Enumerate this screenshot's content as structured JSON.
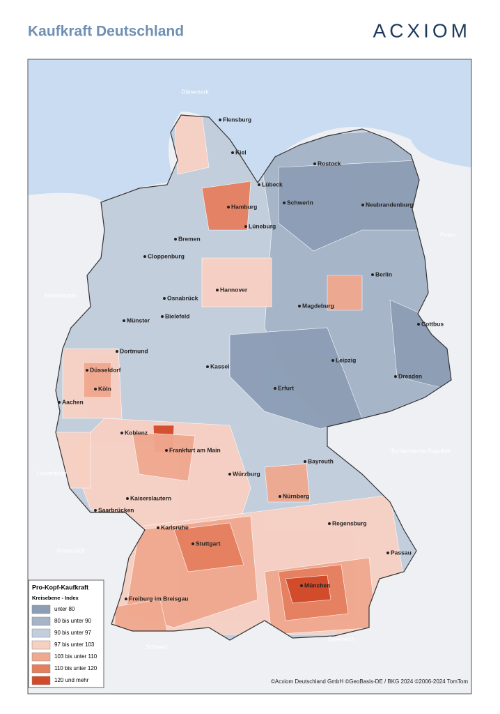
{
  "header": {
    "title": "Kaufkraft Deutschland",
    "logo": "ACXIOM"
  },
  "map": {
    "countries": [
      {
        "label": "Dänemark"
      },
      {
        "label": "Polen"
      },
      {
        "label": "Niederlande"
      },
      {
        "label": "Tschechische Republik"
      },
      {
        "label": "Luxemburg"
      },
      {
        "label": "Frankreich"
      },
      {
        "label": "Schweiz"
      },
      {
        "label": "Österreich"
      }
    ],
    "cities": [
      {
        "label": "Flensburg"
      },
      {
        "label": "Kiel"
      },
      {
        "label": "Rostock"
      },
      {
        "label": "Lübeck"
      },
      {
        "label": "Hamburg"
      },
      {
        "label": "Schwerin"
      },
      {
        "label": "Neubrandenburg"
      },
      {
        "label": "Lüneburg"
      },
      {
        "label": "Bremen"
      },
      {
        "label": "Cloppenburg"
      },
      {
        "label": "Berlin"
      },
      {
        "label": "Hannover"
      },
      {
        "label": "Osnabrück"
      },
      {
        "label": "Magdeburg"
      },
      {
        "label": "Münster"
      },
      {
        "label": "Bielefeld"
      },
      {
        "label": "Cottbus"
      },
      {
        "label": "Dortmund"
      },
      {
        "label": "Leipzig"
      },
      {
        "label": "Kassel"
      },
      {
        "label": "Düsseldorf"
      },
      {
        "label": "Dresden"
      },
      {
        "label": "Köln"
      },
      {
        "label": "Erfurt"
      },
      {
        "label": "Aachen"
      },
      {
        "label": "Koblenz"
      },
      {
        "label": "Frankfurt am Main"
      },
      {
        "label": "Bayreuth"
      },
      {
        "label": "Würzburg"
      },
      {
        "label": "Nürnberg"
      },
      {
        "label": "Kaiserslautern"
      },
      {
        "label": "Saarbrücken"
      },
      {
        "label": "Regensburg"
      },
      {
        "label": "Karlsruhe"
      },
      {
        "label": "Stuttgart"
      },
      {
        "label": "Passau"
      },
      {
        "label": "München"
      },
      {
        "label": "Freiburg im Breisgau"
      }
    ]
  },
  "legend": {
    "title": "Pro-Kopf-Kaufkraft",
    "subtitle": "Kreisebene - Index",
    "items": [
      {
        "label": "unter 80",
        "color": "#8c9db5"
      },
      {
        "label": "80 bis unter 90",
        "color": "#a6b4c8"
      },
      {
        "label": "90 bis unter 97",
        "color": "#c3cedd"
      },
      {
        "label": "97 bis unter 103",
        "color": "#f8d0c2"
      },
      {
        "label": "103 bis unter 110",
        "color": "#f0a88f"
      },
      {
        "label": "110 bis unter 120",
        "color": "#e57e5e"
      },
      {
        "label": "120 und mehr",
        "color": "#d24a2a"
      }
    ]
  },
  "footer": {
    "copyright": "©Acxiom Deutschland GmbH ©GeoBasis-DE / BKG 2024 ©2006-2024 TomTom"
  }
}
